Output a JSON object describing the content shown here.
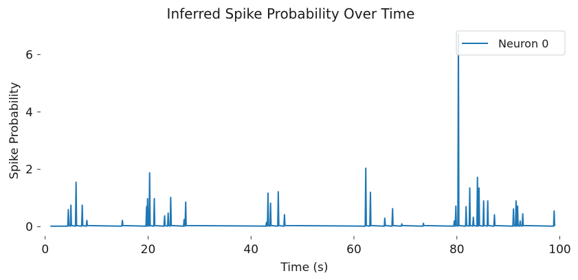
{
  "chart_data": {
    "type": "line",
    "title": "Inferred Spike Probability Over Time",
    "xlabel": "Time (s)",
    "ylabel": "Spike Probability",
    "xlim": [
      -0.5,
      101
    ],
    "ylim": [
      -0.25,
      6.8
    ],
    "xticks": [
      0,
      20,
      40,
      60,
      80,
      100
    ],
    "yticks": [
      0,
      2,
      4,
      6
    ],
    "grid": false,
    "legend_position": "top-right",
    "color": "#1f77b4",
    "series": [
      {
        "name": "Neuron 0",
        "x_start": 1.0,
        "x_end": 99.0,
        "baseline": 0.02,
        "spikes": [
          [
            4.5,
            0.6
          ],
          [
            5.0,
            0.75
          ],
          [
            6.0,
            1.55
          ],
          [
            7.2,
            0.75
          ],
          [
            8.1,
            0.22
          ],
          [
            15.0,
            0.22
          ],
          [
            19.7,
            0.7
          ],
          [
            19.9,
            0.98
          ],
          [
            20.3,
            1.88
          ],
          [
            21.2,
            0.98
          ],
          [
            23.2,
            0.38
          ],
          [
            23.9,
            0.48
          ],
          [
            24.4,
            1.02
          ],
          [
            27.0,
            0.25
          ],
          [
            27.3,
            0.86
          ],
          [
            43.0,
            0.15
          ],
          [
            43.3,
            1.17
          ],
          [
            43.8,
            0.82
          ],
          [
            45.3,
            1.22
          ],
          [
            46.5,
            0.42
          ],
          [
            62.3,
            2.04
          ],
          [
            63.2,
            1.2
          ],
          [
            66.0,
            0.3
          ],
          [
            67.5,
            0.63
          ],
          [
            69.3,
            0.1
          ],
          [
            73.5,
            0.12
          ],
          [
            79.5,
            0.2
          ],
          [
            79.8,
            0.72
          ],
          [
            80.3,
            6.72
          ],
          [
            81.8,
            0.7
          ],
          [
            82.5,
            1.35
          ],
          [
            83.2,
            0.33
          ],
          [
            84.0,
            1.72
          ],
          [
            84.3,
            1.35
          ],
          [
            85.2,
            0.9
          ],
          [
            86.0,
            0.9
          ],
          [
            87.3,
            0.42
          ],
          [
            91.0,
            0.62
          ],
          [
            91.5,
            0.9
          ],
          [
            91.8,
            0.72
          ],
          [
            92.3,
            0.2
          ],
          [
            92.8,
            0.45
          ],
          [
            98.9,
            0.55
          ]
        ]
      }
    ]
  }
}
